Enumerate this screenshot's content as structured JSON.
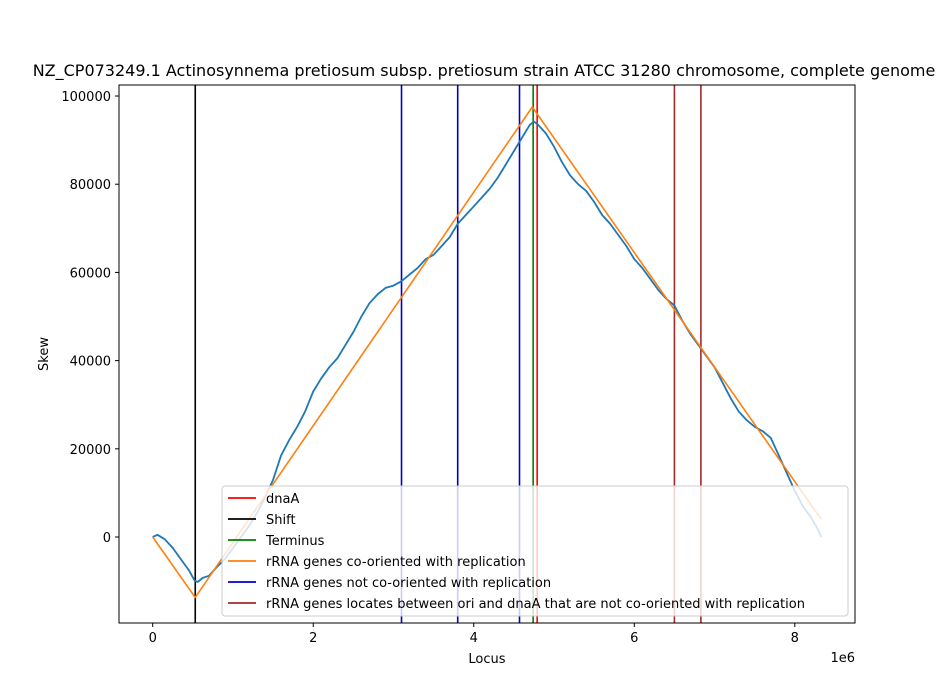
{
  "chart_data": {
    "type": "line",
    "title": "NZ_CP073249.1 Actinosynnema pretiosum subsp. pretiosum strain ATCC 31280 chromosome, complete genome",
    "xlabel": "Locus",
    "ylabel": "Skew",
    "x_offset_label": "1e6",
    "xlim": [
      -420000,
      8750000
    ],
    "ylim": [
      -19500,
      102500
    ],
    "xticks": [
      0,
      2000000,
      4000000,
      6000000,
      8000000
    ],
    "xtick_labels": [
      "0",
      "2",
      "4",
      "6",
      "8"
    ],
    "yticks": [
      0,
      20000,
      40000,
      60000,
      80000,
      100000
    ],
    "ytick_labels": [
      "0",
      "20000",
      "40000",
      "60000",
      "80000",
      "100000"
    ],
    "grid": false,
    "legend_position": "lower right",
    "series": [
      {
        "kind": "skew",
        "color": "#1f77b4",
        "points": [
          [
            0,
            0
          ],
          [
            60000,
            500
          ],
          [
            150000,
            -500
          ],
          [
            250000,
            -2500
          ],
          [
            350000,
            -5000
          ],
          [
            450000,
            -7500
          ],
          [
            520000,
            -9800
          ],
          [
            560000,
            -10200
          ],
          [
            620000,
            -9300
          ],
          [
            700000,
            -8800
          ],
          [
            800000,
            -6800
          ],
          [
            900000,
            -5000
          ],
          [
            1000000,
            -2500
          ],
          [
            1100000,
            0
          ],
          [
            1200000,
            2500
          ],
          [
            1300000,
            5500
          ],
          [
            1400000,
            9000
          ],
          [
            1500000,
            13000
          ],
          [
            1600000,
            18500
          ],
          [
            1700000,
            22000
          ],
          [
            1800000,
            25000
          ],
          [
            1900000,
            28500
          ],
          [
            2000000,
            33000
          ],
          [
            2100000,
            36000
          ],
          [
            2200000,
            38500
          ],
          [
            2300000,
            40500
          ],
          [
            2400000,
            43500
          ],
          [
            2500000,
            46500
          ],
          [
            2600000,
            50000
          ],
          [
            2700000,
            53000
          ],
          [
            2800000,
            55000
          ],
          [
            2900000,
            56500
          ],
          [
            3000000,
            57000
          ],
          [
            3100000,
            58000
          ],
          [
            3200000,
            59500
          ],
          [
            3300000,
            61000
          ],
          [
            3400000,
            63000
          ],
          [
            3500000,
            64000
          ],
          [
            3600000,
            66000
          ],
          [
            3700000,
            68000
          ],
          [
            3800000,
            71000
          ],
          [
            3900000,
            73000
          ],
          [
            4000000,
            75000
          ],
          [
            4100000,
            77000
          ],
          [
            4200000,
            79000
          ],
          [
            4300000,
            81500
          ],
          [
            4400000,
            84500
          ],
          [
            4500000,
            87500
          ],
          [
            4600000,
            90500
          ],
          [
            4700000,
            93500
          ],
          [
            4750000,
            94200
          ],
          [
            4800000,
            93500
          ],
          [
            4900000,
            91500
          ],
          [
            5000000,
            88500
          ],
          [
            5100000,
            85000
          ],
          [
            5200000,
            82000
          ],
          [
            5300000,
            80000
          ],
          [
            5400000,
            78500
          ],
          [
            5500000,
            76000
          ],
          [
            5600000,
            73000
          ],
          [
            5700000,
            71000
          ],
          [
            5800000,
            68500
          ],
          [
            5900000,
            66000
          ],
          [
            6000000,
            63000
          ],
          [
            6100000,
            61000
          ],
          [
            6200000,
            58500
          ],
          [
            6300000,
            56000
          ],
          [
            6400000,
            54000
          ],
          [
            6500000,
            52500
          ],
          [
            6600000,
            49000
          ],
          [
            6700000,
            46000
          ],
          [
            6800000,
            43500
          ],
          [
            6900000,
            41000
          ],
          [
            7000000,
            38500
          ],
          [
            7100000,
            35000
          ],
          [
            7200000,
            31500
          ],
          [
            7300000,
            28500
          ],
          [
            7400000,
            26500
          ],
          [
            7500000,
            25000
          ],
          [
            7600000,
            24000
          ],
          [
            7700000,
            22500
          ],
          [
            7800000,
            18500
          ],
          [
            7900000,
            14500
          ],
          [
            8000000,
            10500
          ],
          [
            8100000,
            7000
          ],
          [
            8200000,
            4500
          ],
          [
            8280000,
            2000
          ],
          [
            8330000,
            0
          ]
        ]
      },
      {
        "kind": "fit",
        "label": "rRNA genes co-oriented with replication",
        "color": "#ff7f0e",
        "points": [
          [
            0,
            0
          ],
          [
            530000,
            -13700
          ],
          [
            4730000,
            97500
          ],
          [
            8330000,
            4000
          ]
        ]
      }
    ],
    "vlines": [
      {
        "name": "shift",
        "x": 530000,
        "color": "#000000"
      },
      {
        "name": "dnaA",
        "x": 4790000,
        "color": "#ff0000"
      },
      {
        "name": "terminus",
        "x": 4740000,
        "color": "#008000"
      },
      {
        "name": "rrna-not-cooriented-1",
        "x": 3100000,
        "color": "#0000cd"
      },
      {
        "name": "rrna-not-cooriented-2",
        "x": 3800000,
        "color": "#0000cd"
      },
      {
        "name": "rrna-not-cooriented-3",
        "x": 4570000,
        "color": "#0000cd"
      },
      {
        "name": "rrna-between-ori-dnaa-1",
        "x": 6500000,
        "color": "#a52a2a"
      },
      {
        "name": "rrna-between-ori-dnaa-2",
        "x": 6830000,
        "color": "#a52a2a"
      }
    ],
    "legend": [
      {
        "label": "dnaA",
        "color": "#ff0000"
      },
      {
        "label": "Shift",
        "color": "#000000"
      },
      {
        "label": "Terminus",
        "color": "#008000"
      },
      {
        "label": "rRNA genes co-oriented with replication",
        "color": "#ff7f0e"
      },
      {
        "label": "rRNA genes not co-oriented with replication",
        "color": "#0000cd"
      },
      {
        "label": "rRNA genes locates between ori and dnaA that are not co-oriented with replication",
        "color": "#a52a2a"
      }
    ]
  }
}
